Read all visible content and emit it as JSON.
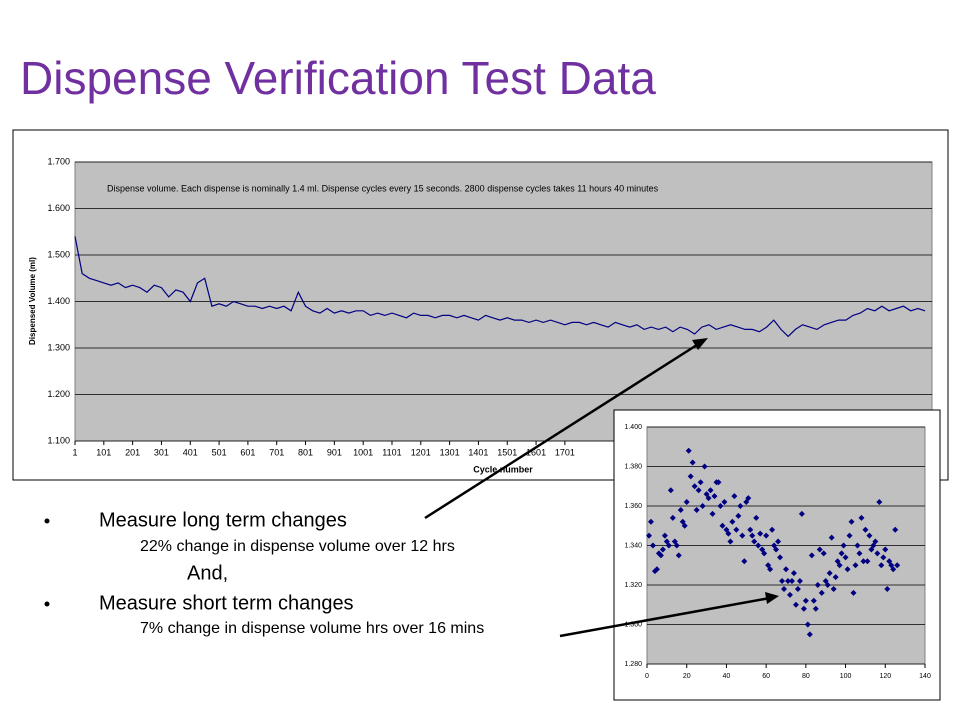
{
  "title": "Dispense Verification Test Data",
  "bullets": [
    {
      "text": "Measure long term changes",
      "sub": "22% change in dispense volume over 12 hrs"
    },
    {
      "text": "Measure short term changes",
      "sub": "7% change in dispense volume hrs over 16 mins"
    }
  ],
  "connector": "And,",
  "chart_data": [
    {
      "type": "line",
      "annotation": "Dispense volume.   Each dispense is nominally 1.4 ml. Dispense cycles every 15 seconds. 2800 dispense cycles takes 11 hours 40 minutes",
      "ylabel": "Dispensed Volume (ml)",
      "xlabel": "Cycle number",
      "xlim": [
        1,
        2975
      ],
      "ylim": [
        1.1,
        1.7
      ],
      "grid": true,
      "xticks": [
        1,
        101,
        201,
        301,
        401,
        501,
        601,
        701,
        801,
        901,
        1001,
        1101,
        1201,
        1301,
        1401,
        1501,
        1601,
        1701
      ],
      "yticks": [
        {
          "value": 1.1,
          "label": "1.100"
        },
        {
          "value": 1.2,
          "label": "1.200"
        },
        {
          "value": 1.3,
          "label": "1.300"
        },
        {
          "value": 1.4,
          "label": "1.400"
        },
        {
          "value": 1.5,
          "label": "1.500"
        },
        {
          "value": 1.6,
          "label": "1.600"
        },
        {
          "value": 1.7,
          "label": "1.700"
        }
      ],
      "x": [
        1,
        26,
        51,
        76,
        101,
        126,
        151,
        176,
        201,
        226,
        251,
        276,
        301,
        326,
        351,
        376,
        401,
        426,
        451,
        476,
        501,
        526,
        551,
        576,
        601,
        626,
        651,
        676,
        701,
        726,
        751,
        776,
        801,
        826,
        851,
        876,
        901,
        926,
        951,
        976,
        1001,
        1026,
        1051,
        1076,
        1101,
        1126,
        1151,
        1176,
        1201,
        1226,
        1251,
        1276,
        1301,
        1326,
        1351,
        1376,
        1401,
        1426,
        1451,
        1476,
        1501,
        1526,
        1551,
        1576,
        1601,
        1626,
        1651,
        1676,
        1701,
        1726,
        1751,
        1776,
        1801,
        1826,
        1851,
        1876,
        1901,
        1926,
        1951,
        1976,
        2001,
        2026,
        2051,
        2076,
        2101,
        2126,
        2151,
        2176,
        2201,
        2226,
        2251,
        2276,
        2301,
        2326,
        2351,
        2376,
        2401,
        2426,
        2451,
        2476,
        2501,
        2526,
        2551,
        2576,
        2601,
        2626,
        2651,
        2676,
        2701,
        2726,
        2751,
        2776,
        2801,
        2826,
        2851,
        2876,
        2901,
        2926,
        2951
      ],
      "series": [
        {
          "color": "#000080",
          "values": [
            1.54,
            1.46,
            1.45,
            1.445,
            1.44,
            1.435,
            1.44,
            1.43,
            1.435,
            1.43,
            1.42,
            1.435,
            1.43,
            1.41,
            1.425,
            1.42,
            1.4,
            1.44,
            1.45,
            1.39,
            1.395,
            1.39,
            1.4,
            1.395,
            1.39,
            1.39,
            1.385,
            1.39,
            1.385,
            1.39,
            1.38,
            1.42,
            1.39,
            1.38,
            1.375,
            1.385,
            1.375,
            1.38,
            1.375,
            1.38,
            1.38,
            1.37,
            1.375,
            1.37,
            1.375,
            1.37,
            1.365,
            1.375,
            1.37,
            1.37,
            1.365,
            1.37,
            1.37,
            1.365,
            1.37,
            1.365,
            1.36,
            1.37,
            1.365,
            1.36,
            1.365,
            1.36,
            1.36,
            1.355,
            1.36,
            1.355,
            1.36,
            1.355,
            1.35,
            1.355,
            1.355,
            1.35,
            1.355,
            1.35,
            1.345,
            1.355,
            1.35,
            1.345,
            1.35,
            1.34,
            1.345,
            1.34,
            1.345,
            1.335,
            1.345,
            1.34,
            1.33,
            1.345,
            1.35,
            1.34,
            1.345,
            1.35,
            1.345,
            1.34,
            1.34,
            1.335,
            1.345,
            1.36,
            1.34,
            1.325,
            1.34,
            1.35,
            1.345,
            1.34,
            1.35,
            1.355,
            1.36,
            1.36,
            1.37,
            1.375,
            1.385,
            1.38,
            1.39,
            1.38,
            1.385,
            1.39,
            1.38,
            1.385,
            1.38
          ]
        }
      ]
    },
    {
      "type": "scatter",
      "xlim": [
        0,
        140
      ],
      "ylim": [
        1.28,
        1.4
      ],
      "grid": true,
      "xticks": [
        0,
        20,
        40,
        60,
        80,
        100,
        120,
        140
      ],
      "yticks": [
        {
          "value": 1.28,
          "label": "1.280"
        },
        {
          "value": 1.3,
          "label": "1.300"
        },
        {
          "value": 1.32,
          "label": "1.320"
        },
        {
          "value": 1.34,
          "label": "1.340"
        },
        {
          "value": 1.36,
          "label": "1.360"
        },
        {
          "value": 1.38,
          "label": "1.380"
        },
        {
          "value": 1.4,
          "label": "1.400"
        }
      ],
      "x": [
        1,
        2,
        3,
        4,
        5,
        6,
        7,
        8,
        9,
        10,
        11,
        12,
        13,
        14,
        15,
        16,
        17,
        18,
        19,
        20,
        21,
        22,
        23,
        24,
        25,
        26,
        27,
        28,
        29,
        30,
        31,
        32,
        33,
        34,
        35,
        36,
        37,
        38,
        39,
        40,
        41,
        42,
        43,
        44,
        45,
        46,
        47,
        48,
        49,
        50,
        51,
        52,
        53,
        54,
        55,
        56,
        57,
        58,
        59,
        60,
        61,
        62,
        63,
        64,
        65,
        66,
        67,
        68,
        69,
        70,
        71,
        72,
        73,
        74,
        75,
        76,
        77,
        78,
        79,
        80,
        81,
        82,
        83,
        84,
        85,
        86,
        87,
        88,
        89,
        90,
        91,
        92,
        93,
        94,
        95,
        96,
        97,
        98,
        99,
        100,
        101,
        102,
        103,
        104,
        105,
        106,
        107,
        108,
        109,
        110,
        111,
        112,
        113,
        114,
        115,
        116,
        117,
        118,
        119,
        120,
        121,
        122,
        123,
        124,
        125,
        126
      ],
      "color": "#000080",
      "values": [
        1.345,
        1.352,
        1.34,
        1.327,
        1.328,
        1.336,
        1.335,
        1.338,
        1.345,
        1.342,
        1.34,
        1.368,
        1.354,
        1.342,
        1.34,
        1.335,
        1.358,
        1.352,
        1.35,
        1.362,
        1.388,
        1.375,
        1.382,
        1.37,
        1.358,
        1.368,
        1.372,
        1.36,
        1.38,
        1.366,
        1.364,
        1.368,
        1.356,
        1.365,
        1.372,
        1.372,
        1.36,
        1.35,
        1.362,
        1.348,
        1.346,
        1.342,
        1.352,
        1.365,
        1.348,
        1.355,
        1.36,
        1.345,
        1.332,
        1.362,
        1.364,
        1.348,
        1.345,
        1.342,
        1.354,
        1.34,
        1.346,
        1.338,
        1.336,
        1.345,
        1.33,
        1.328,
        1.348,
        1.34,
        1.338,
        1.342,
        1.334,
        1.322,
        1.318,
        1.328,
        1.322,
        1.315,
        1.322,
        1.326,
        1.31,
        1.318,
        1.322,
        1.356,
        1.308,
        1.312,
        1.3,
        1.295,
        1.335,
        1.312,
        1.308,
        1.32,
        1.338,
        1.316,
        1.336,
        1.322,
        1.32,
        1.326,
        1.344,
        1.318,
        1.324,
        1.332,
        1.33,
        1.336,
        1.34,
        1.334,
        1.328,
        1.345,
        1.352,
        1.316,
        1.33,
        1.34,
        1.336,
        1.354,
        1.332,
        1.348,
        1.332,
        1.345,
        1.338,
        1.34,
        1.342,
        1.336,
        1.362,
        1.33,
        1.334,
        1.338,
        1.318,
        1.332,
        1.33,
        1.328,
        1.348,
        1.33
      ]
    }
  ]
}
